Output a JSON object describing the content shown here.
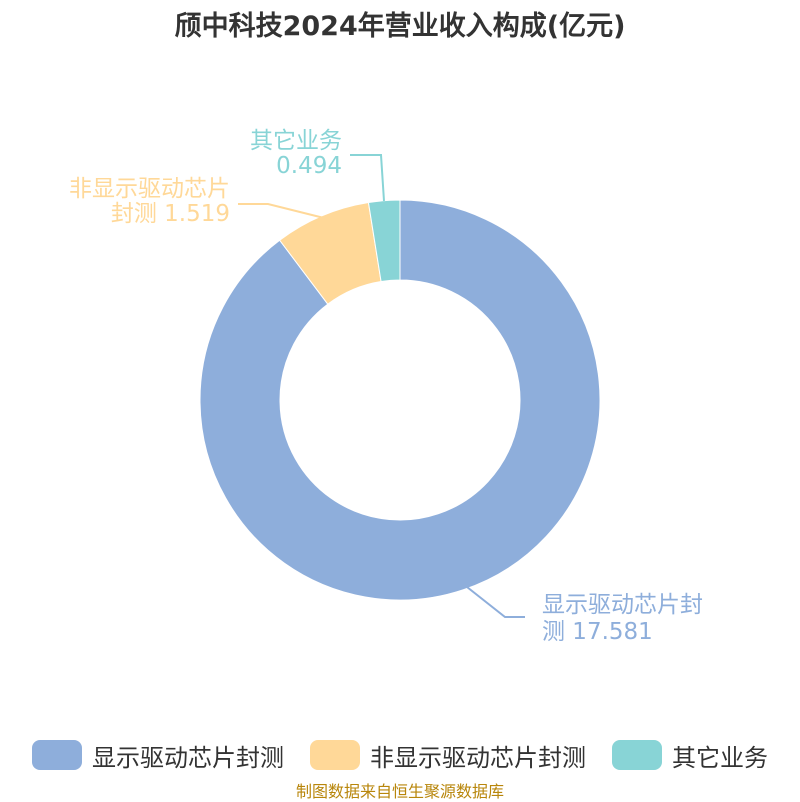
{
  "chart_data": {
    "type": "pie",
    "title": "颀中科技2024年营业收入构成(亿元)",
    "slices": [
      {
        "name": "显示驱动芯片封测",
        "label_lines": [
          "显示驱动芯片封",
          "测 17.581"
        ],
        "value": 17.581,
        "color": "#8eaedb"
      },
      {
        "name": "非显示驱动芯片封测",
        "label_lines": [
          "非显示驱动芯片",
          "封测 1.519"
        ],
        "value": 1.519,
        "color": "#ffd898"
      },
      {
        "name": "其它业务",
        "label_lines": [
          "其它业务",
          "0.494"
        ],
        "value": 0.494,
        "color": "#88d4d6"
      }
    ],
    "legend_position": "bottom"
  },
  "footer": {
    "source": "制图数据来自恒生聚源数据库"
  }
}
